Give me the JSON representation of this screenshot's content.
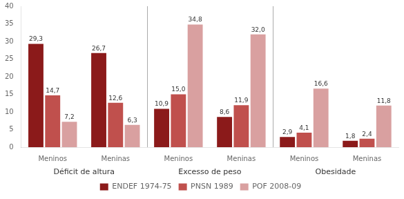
{
  "chart_data": {
    "type": "bar",
    "categories": [
      "Meninos",
      "Meninas",
      "Meninos",
      "Meninas",
      "Meninos",
      "Meninas"
    ],
    "annotations": [
      "Déficit de altura",
      "Excesso de peso",
      "Obesidade"
    ],
    "series": [
      {
        "name": "ENDEF 1974-75",
        "color": "#8B1A1A",
        "values": [
          29.3,
          26.7,
          10.9,
          8.6,
          2.9,
          1.8
        ],
        "value_labels": [
          "29,3",
          "26,7",
          "10,9",
          "8,6",
          "2,9",
          "1,8"
        ]
      },
      {
        "name": "PNSN 1989",
        "color": "#C0504D",
        "values": [
          14.7,
          12.6,
          15.0,
          11.9,
          4.1,
          2.4
        ],
        "value_labels": [
          "14,7",
          "12,6",
          "15,0",
          "11,9",
          "4,1",
          "2,4"
        ]
      },
      {
        "name": "POF 2008-09",
        "color": "#D9A0A0",
        "values": [
          7.2,
          6.3,
          34.8,
          32.0,
          16.6,
          11.8
        ],
        "value_labels": [
          "7,2",
          "6,3",
          "34,8",
          "32,0",
          "16,6",
          "11,8"
        ]
      }
    ],
    "ylim": [
      0,
      40
    ],
    "yticks": [
      0,
      5,
      10,
      15,
      20,
      25,
      30,
      35,
      40
    ],
    "grid": false,
    "legend": "bottom",
    "data_labels": true
  }
}
